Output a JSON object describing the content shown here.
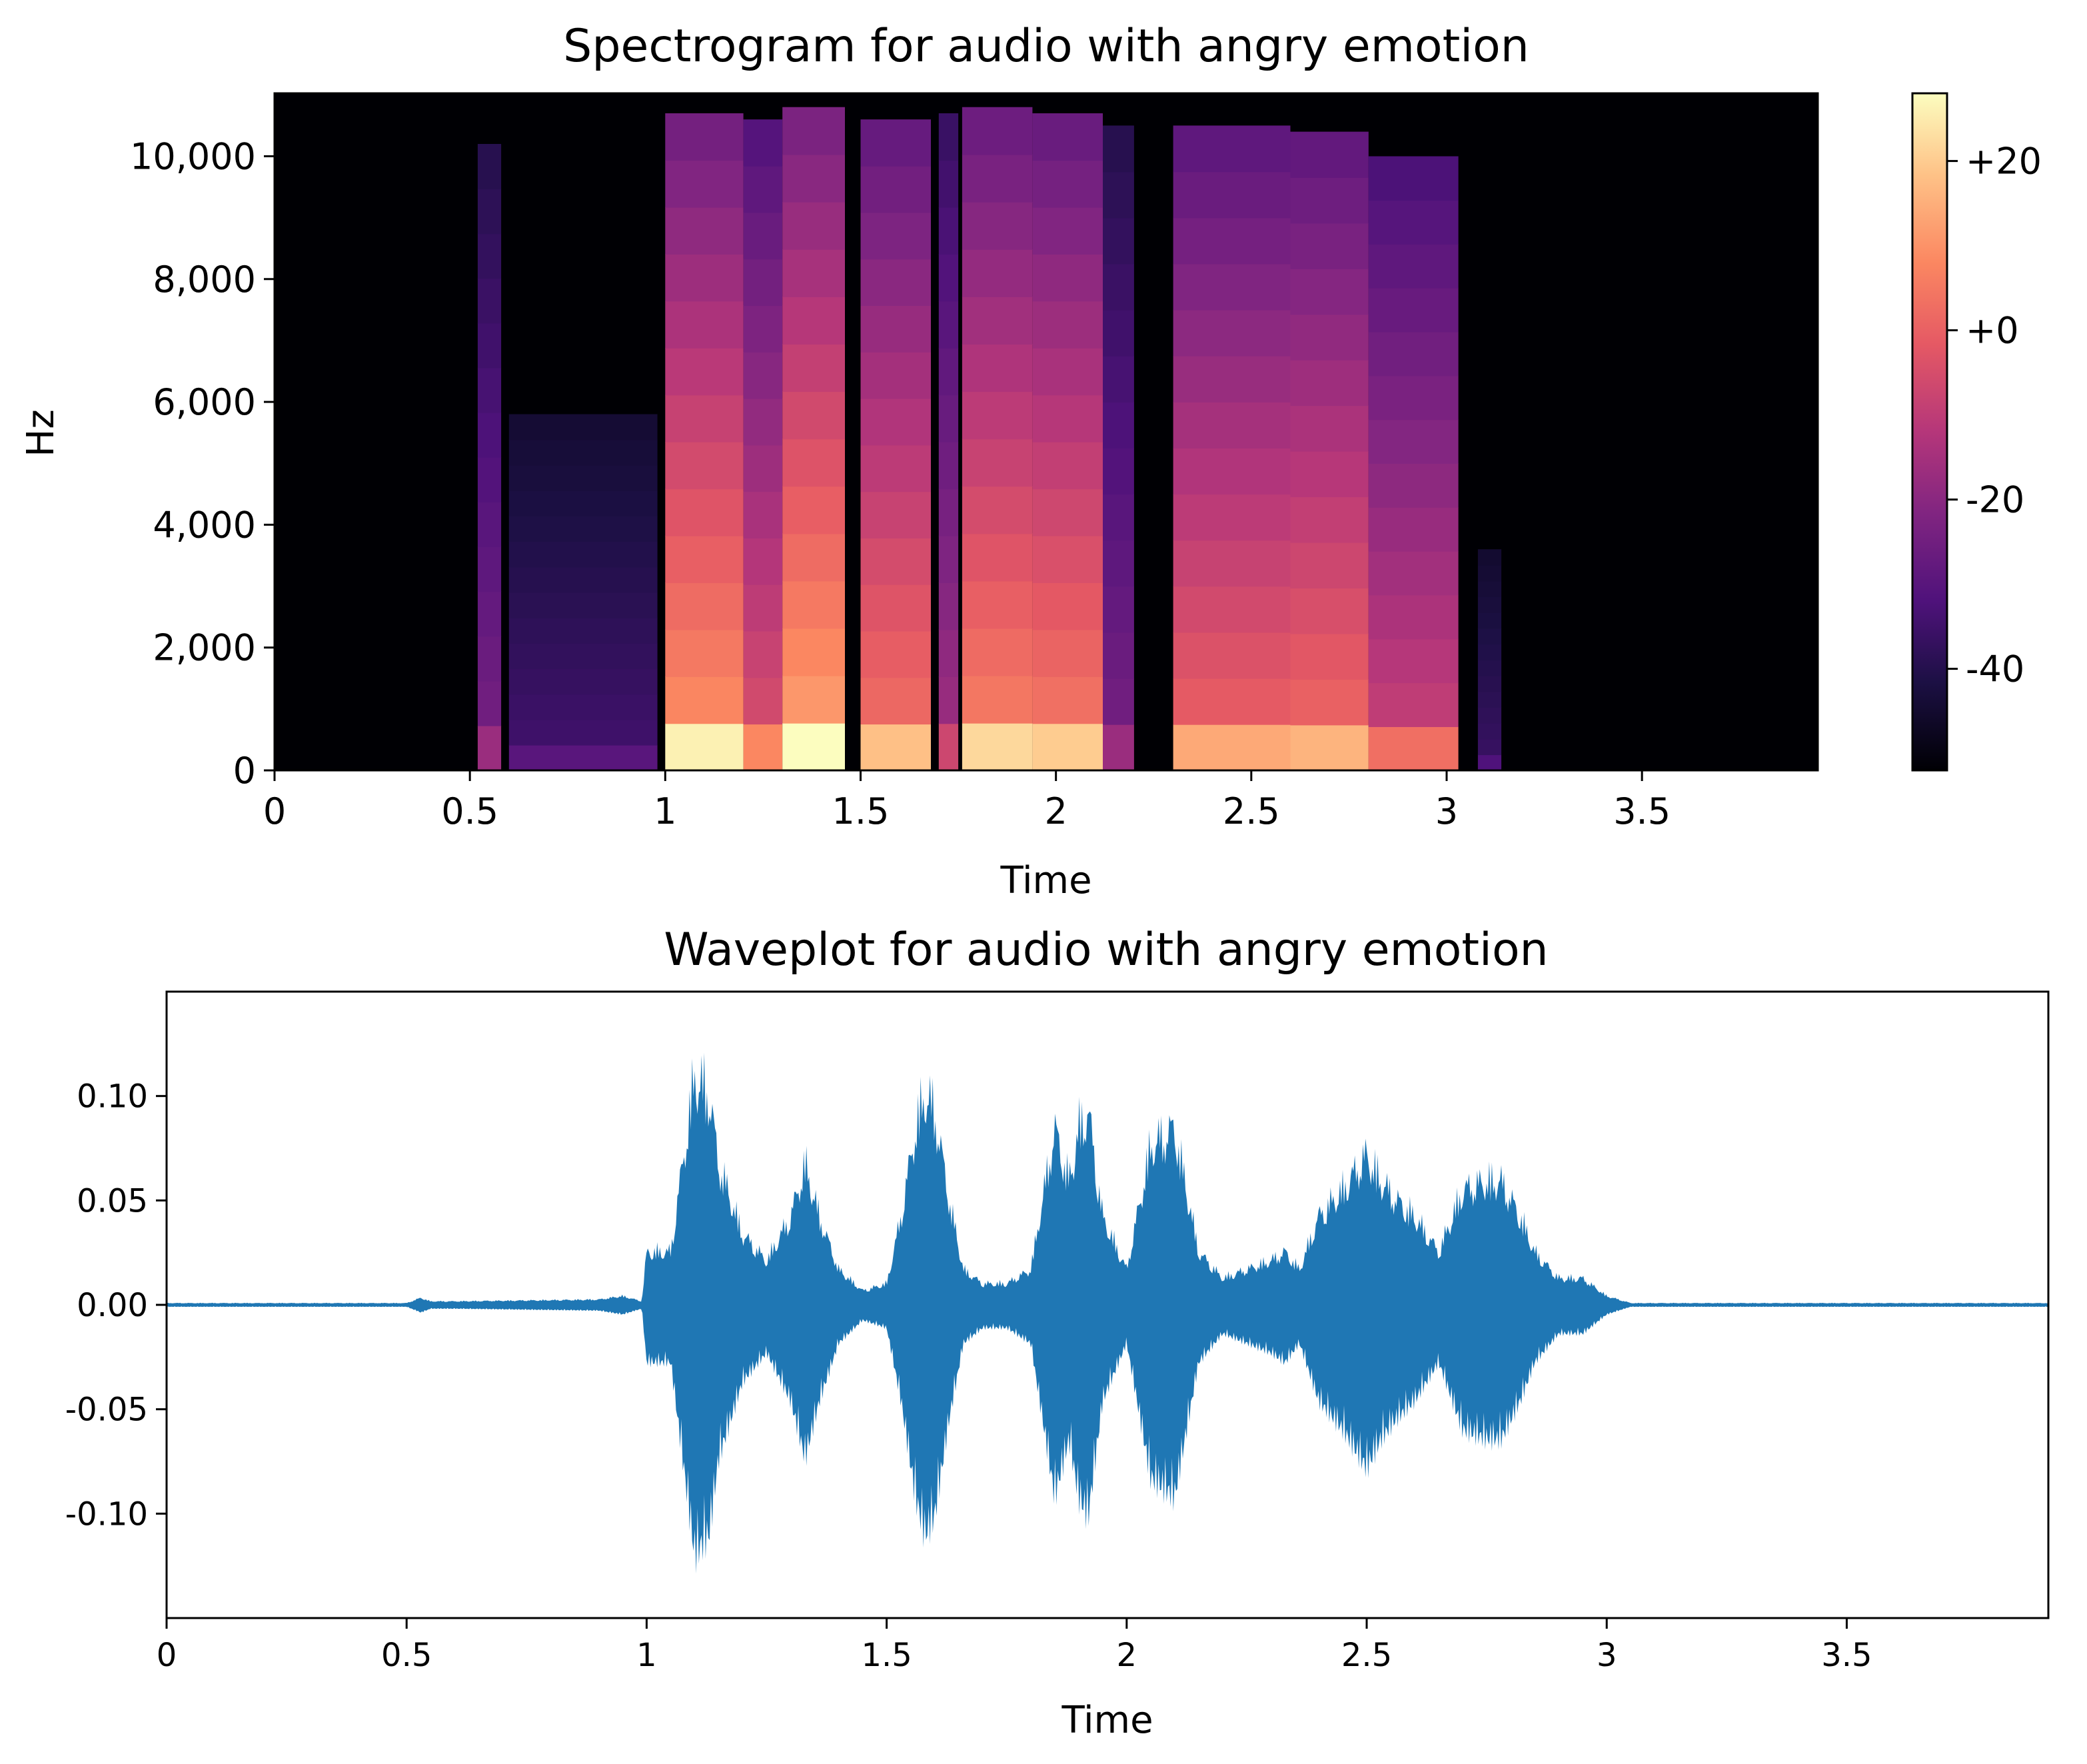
{
  "chart_data": [
    {
      "type": "heatmap",
      "title": "Spectrogram for audio with angry emotion",
      "xlabel": "Time",
      "ylabel": "Hz",
      "xlim": [
        0,
        3.95
      ],
      "ylim": [
        0,
        11025
      ],
      "x_ticks": [
        0,
        0.5,
        1,
        1.5,
        2,
        2.5,
        3,
        3.5
      ],
      "x_tick_labels": [
        "0",
        "0.5",
        "1",
        "1.5",
        "2",
        "2.5",
        "3",
        "3.5"
      ],
      "y_ticks": [
        0,
        2000,
        4000,
        6000,
        8000,
        10000
      ],
      "y_tick_labels": [
        "0",
        "2,000",
        "4,000",
        "6,000",
        "8,000",
        "10,000"
      ],
      "colormap": "magma",
      "colorbar": {
        "range": [
          -52,
          28
        ],
        "ticks": [
          20,
          0,
          -20,
          -40
        ],
        "tick_labels": [
          "+20",
          "+0",
          "-20",
          "-40"
        ]
      },
      "segments": [
        {
          "t0": 0.52,
          "t1": 0.58,
          "f_max": 10200,
          "level": 0.35
        },
        {
          "t0": 0.6,
          "t1": 0.98,
          "f_max": 5800,
          "level": 0.22
        },
        {
          "t0": 1.0,
          "t1": 1.2,
          "f_max": 10700,
          "level": 0.78
        },
        {
          "t0": 1.2,
          "t1": 1.3,
          "f_max": 10600,
          "level": 0.6
        },
        {
          "t0": 1.3,
          "t1": 1.46,
          "f_max": 10800,
          "level": 0.82
        },
        {
          "t0": 1.5,
          "t1": 1.68,
          "f_max": 10600,
          "level": 0.7
        },
        {
          "t0": 1.7,
          "t1": 1.75,
          "f_max": 10700,
          "level": 0.45
        },
        {
          "t0": 1.76,
          "t1": 1.94,
          "f_max": 10800,
          "level": 0.74
        },
        {
          "t0": 1.94,
          "t1": 2.12,
          "f_max": 10700,
          "level": 0.72
        },
        {
          "t0": 2.12,
          "t1": 2.2,
          "f_max": 10500,
          "level": 0.35
        },
        {
          "t0": 2.3,
          "t1": 2.6,
          "f_max": 10500,
          "level": 0.66
        },
        {
          "t0": 2.6,
          "t1": 2.8,
          "f_max": 10400,
          "level": 0.68
        },
        {
          "t0": 2.8,
          "t1": 3.03,
          "f_max": 10000,
          "level": 0.55
        },
        {
          "t0": 3.08,
          "t1": 3.14,
          "f_max": 3600,
          "level": 0.2
        }
      ]
    },
    {
      "type": "line",
      "title": "Waveplot for audio with angry emotion",
      "xlabel": "Time",
      "ylabel": "",
      "xlim": [
        0,
        3.92
      ],
      "ylim": [
        -0.15,
        0.15
      ],
      "x_ticks": [
        0,
        0.5,
        1,
        1.5,
        2,
        2.5,
        3,
        3.5
      ],
      "x_tick_labels": [
        "0",
        "0.5",
        "1",
        "1.5",
        "2",
        "2.5",
        "3",
        "3.5"
      ],
      "y_ticks": [
        0.1,
        0.05,
        0.0,
        -0.05,
        -0.1
      ],
      "y_tick_labels": [
        "0.10",
        "0.05",
        "0.00",
        "-0.05",
        "-0.10"
      ],
      "grid": false,
      "line_color": "#1f77b4",
      "envelope": {
        "t": [
          0.0,
          0.5,
          0.53,
          0.55,
          0.6,
          0.9,
          0.95,
          0.99,
          1.0,
          1.05,
          1.08,
          1.1,
          1.13,
          1.15,
          1.2,
          1.25,
          1.3,
          1.33,
          1.36,
          1.4,
          1.45,
          1.5,
          1.53,
          1.56,
          1.58,
          1.6,
          1.63,
          1.66,
          1.7,
          1.75,
          1.8,
          1.85,
          1.88,
          1.9,
          1.92,
          1.95,
          2.0,
          2.05,
          2.1,
          2.15,
          2.2,
          2.25,
          2.3,
          2.33,
          2.36,
          2.4,
          2.45,
          2.5,
          2.53,
          2.56,
          2.6,
          2.65,
          2.7,
          2.75,
          2.78,
          2.82,
          2.85,
          2.9,
          2.95,
          3.0,
          3.05,
          3.1,
          3.92
        ],
        "amplitude": [
          0.001,
          0.001,
          0.004,
          0.002,
          0.002,
          0.003,
          0.005,
          0.002,
          0.03,
          0.03,
          0.09,
          0.13,
          0.12,
          0.08,
          0.04,
          0.025,
          0.05,
          0.08,
          0.05,
          0.02,
          0.008,
          0.012,
          0.05,
          0.1,
          0.12,
          0.11,
          0.06,
          0.02,
          0.012,
          0.012,
          0.02,
          0.1,
          0.07,
          0.1,
          0.11,
          0.05,
          0.02,
          0.09,
          0.1,
          0.03,
          0.015,
          0.02,
          0.025,
          0.03,
          0.02,
          0.05,
          0.065,
          0.085,
          0.07,
          0.06,
          0.05,
          0.03,
          0.065,
          0.07,
          0.07,
          0.05,
          0.03,
          0.015,
          0.015,
          0.005,
          0.001,
          0.001,
          0.001
        ]
      }
    }
  ]
}
